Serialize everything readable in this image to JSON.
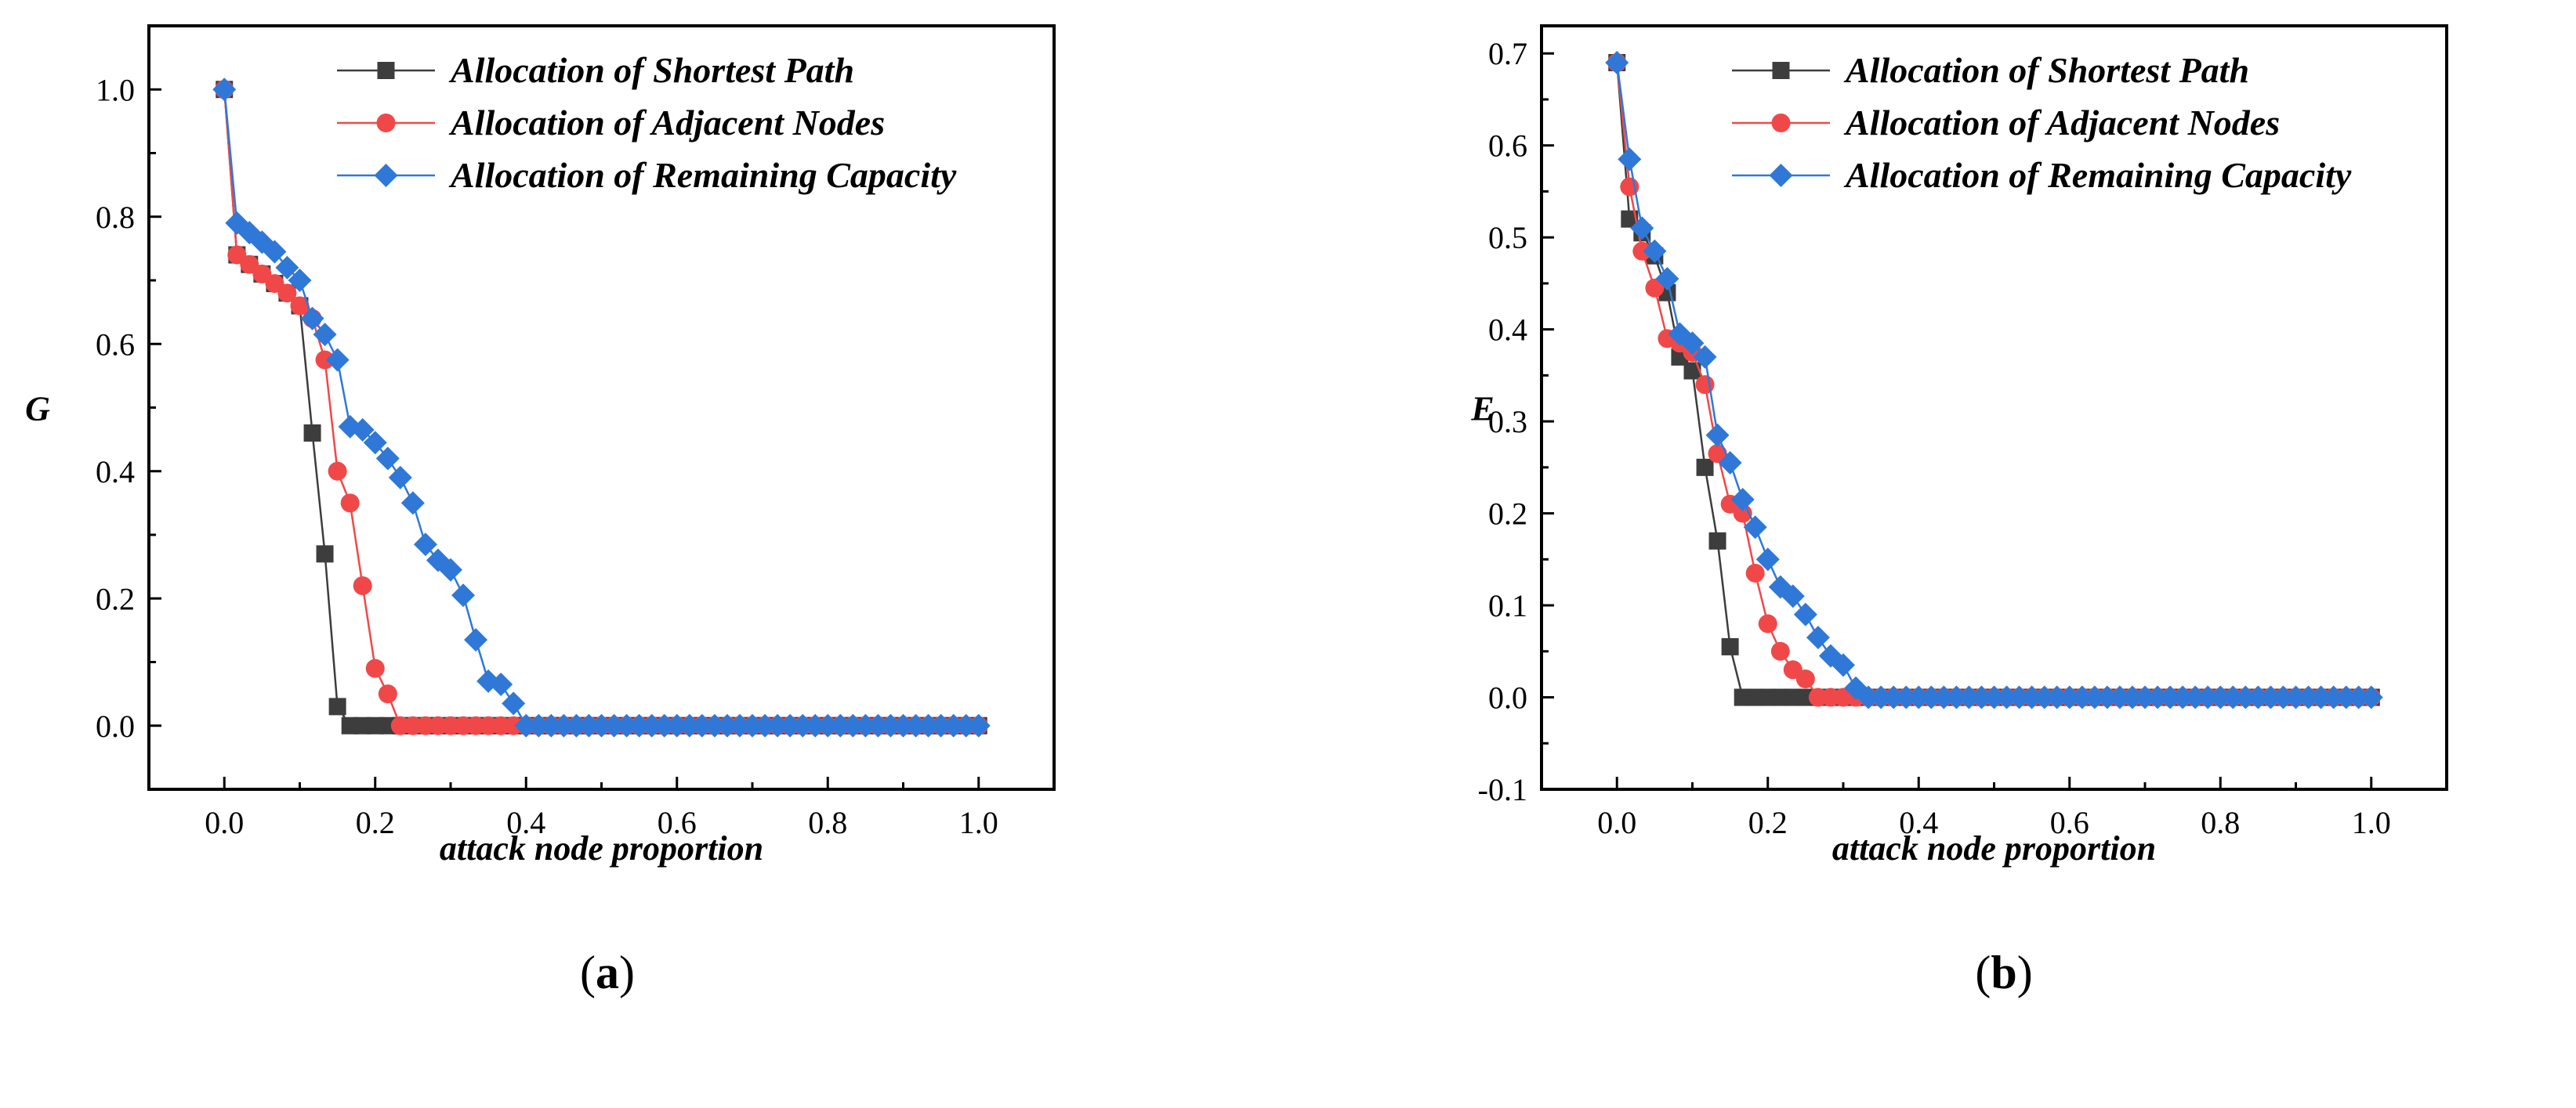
{
  "chart_data": [
    {
      "panel": "a",
      "type": "line",
      "ylabel": "G",
      "xlabel": "attack node proportion",
      "xlim": [
        -0.1,
        1.1
      ],
      "ylim": [
        -0.1,
        1.1
      ],
      "xticks": [
        "0.0",
        "0.2",
        "0.4",
        "0.6",
        "0.8",
        "1.0"
      ],
      "xtick_values": [
        0,
        0.2,
        0.4,
        0.6,
        0.8,
        1.0
      ],
      "yticks": [
        "0.0",
        "0.2",
        "0.4",
        "0.6",
        "0.8",
        "1.0"
      ],
      "ytick_values": [
        0,
        0.2,
        0.4,
        0.6,
        0.8,
        1.0
      ],
      "legend_position": "top-right",
      "series": [
        {
          "name": "Allocation of Shortest Path",
          "marker": "square",
          "color": "#3d3d3d",
          "x": [
            0,
            0.0167,
            0.0333,
            0.05,
            0.0667,
            0.0833,
            0.1,
            0.1167,
            0.1333,
            0.15,
            0.1667,
            0.1833,
            0.2,
            0.2167,
            0.2333,
            0.25,
            0.2667,
            0.2833,
            0.3,
            0.3167,
            0.3333,
            0.35,
            0.3667,
            0.3833,
            0.4,
            0.4167,
            0.4333,
            0.45,
            0.4667,
            0.4833,
            0.5,
            0.5167,
            0.5333,
            0.55,
            0.5667,
            0.5833,
            0.6,
            0.6167,
            0.6333,
            0.65,
            0.6667,
            0.6833,
            0.7,
            0.7167,
            0.7333,
            0.75,
            0.7667,
            0.7833,
            0.8,
            0.8167,
            0.8333,
            0.85,
            0.8667,
            0.8833,
            0.9,
            0.9167,
            0.9333,
            0.95,
            0.9667,
            0.9833,
            1.0
          ],
          "y": [
            1.0,
            0.74,
            0.725,
            0.71,
            0.695,
            0.68,
            0.66,
            0.46,
            0.27,
            0.03,
            0,
            0,
            0,
            0,
            0,
            0,
            0,
            0,
            0,
            0,
            0,
            0,
            0,
            0,
            0,
            0,
            0,
            0,
            0,
            0,
            0,
            0,
            0,
            0,
            0,
            0,
            0,
            0,
            0,
            0,
            0,
            0,
            0,
            0,
            0,
            0,
            0,
            0,
            0,
            0,
            0,
            0,
            0,
            0,
            0,
            0,
            0,
            0,
            0,
            0,
            0
          ]
        },
        {
          "name": "Allocation of Adjacent Nodes",
          "marker": "circle",
          "color": "#f04848",
          "x": [
            0,
            0.0167,
            0.0333,
            0.05,
            0.0667,
            0.0833,
            0.1,
            0.1167,
            0.1333,
            0.15,
            0.1667,
            0.1833,
            0.2,
            0.2167,
            0.2333,
            0.25,
            0.2667,
            0.2833,
            0.3,
            0.3167,
            0.3333,
            0.35,
            0.3667,
            0.3833,
            0.4,
            0.4167,
            0.4333,
            0.45,
            0.4667,
            0.4833,
            0.5,
            0.5167,
            0.5333,
            0.55,
            0.5667,
            0.5833,
            0.6,
            0.6167,
            0.6333,
            0.65,
            0.6667,
            0.6833,
            0.7,
            0.7167,
            0.7333,
            0.75,
            0.7667,
            0.7833,
            0.8,
            0.8167,
            0.8333,
            0.85,
            0.8667,
            0.8833,
            0.9,
            0.9167,
            0.9333,
            0.95,
            0.9667,
            0.9833,
            1.0
          ],
          "y": [
            1.0,
            0.74,
            0.725,
            0.71,
            0.695,
            0.68,
            0.66,
            0.64,
            0.575,
            0.4,
            0.35,
            0.22,
            0.09,
            0.05,
            0,
            0,
            0,
            0,
            0,
            0,
            0,
            0,
            0,
            0,
            0,
            0,
            0,
            0,
            0,
            0,
            0,
            0,
            0,
            0,
            0,
            0,
            0,
            0,
            0,
            0,
            0,
            0,
            0,
            0,
            0,
            0,
            0,
            0,
            0,
            0,
            0,
            0,
            0,
            0,
            0,
            0,
            0,
            0,
            0,
            0,
            0
          ]
        },
        {
          "name": "Allocation of Remaining Capacity",
          "marker": "diamond",
          "color": "#2f78d8",
          "x": [
            0,
            0.0167,
            0.0333,
            0.05,
            0.0667,
            0.0833,
            0.1,
            0.1167,
            0.1333,
            0.15,
            0.1667,
            0.1833,
            0.2,
            0.2167,
            0.2333,
            0.25,
            0.2667,
            0.2833,
            0.3,
            0.3167,
            0.3333,
            0.35,
            0.3667,
            0.3833,
            0.4,
            0.4167,
            0.4333,
            0.45,
            0.4667,
            0.4833,
            0.5,
            0.5167,
            0.5333,
            0.55,
            0.5667,
            0.5833,
            0.6,
            0.6167,
            0.6333,
            0.65,
            0.6667,
            0.6833,
            0.7,
            0.7167,
            0.7333,
            0.75,
            0.7667,
            0.7833,
            0.8,
            0.8167,
            0.8333,
            0.85,
            0.8667,
            0.8833,
            0.9,
            0.9167,
            0.9333,
            0.95,
            0.9667,
            0.9833,
            1.0
          ],
          "y": [
            1.0,
            0.79,
            0.775,
            0.76,
            0.745,
            0.72,
            0.7,
            0.64,
            0.615,
            0.575,
            0.47,
            0.465,
            0.445,
            0.42,
            0.39,
            0.35,
            0.285,
            0.26,
            0.245,
            0.205,
            0.135,
            0.07,
            0.065,
            0.035,
            0,
            0,
            0,
            0,
            0,
            0,
            0,
            0,
            0,
            0,
            0,
            0,
            0,
            0,
            0,
            0,
            0,
            0,
            0,
            0,
            0,
            0,
            0,
            0,
            0,
            0,
            0,
            0,
            0,
            0,
            0,
            0,
            0,
            0,
            0,
            0,
            0
          ]
        }
      ]
    },
    {
      "panel": "b",
      "type": "line",
      "ylabel": "E",
      "xlabel": "attack node proportion",
      "xlim": [
        -0.1,
        1.1
      ],
      "ylim": [
        -0.1,
        0.73
      ],
      "xticks": [
        "0.0",
        "0.2",
        "0.4",
        "0.6",
        "0.8",
        "1.0"
      ],
      "xtick_values": [
        0,
        0.2,
        0.4,
        0.6,
        0.8,
        1.0
      ],
      "yticks": [
        "-0.1",
        "0.0",
        "0.1",
        "0.2",
        "0.3",
        "0.4",
        "0.5",
        "0.6",
        "0.7"
      ],
      "ytick_values": [
        -0.1,
        0,
        0.1,
        0.2,
        0.3,
        0.4,
        0.5,
        0.6,
        0.7
      ],
      "legend_position": "top-right",
      "series": [
        {
          "name": "Allocation of Shortest Path",
          "marker": "square",
          "color": "#3d3d3d",
          "x": [
            0,
            0.0167,
            0.0333,
            0.05,
            0.0667,
            0.0833,
            0.1,
            0.1167,
            0.1333,
            0.15,
            0.1667,
            0.1833,
            0.2,
            0.2167,
            0.2333,
            0.25,
            0.2667,
            0.2833,
            0.3,
            0.3167,
            0.3333,
            0.35,
            0.3667,
            0.3833,
            0.4,
            0.4167,
            0.4333,
            0.45,
            0.4667,
            0.4833,
            0.5,
            0.5167,
            0.5333,
            0.55,
            0.5667,
            0.5833,
            0.6,
            0.6167,
            0.6333,
            0.65,
            0.6667,
            0.6833,
            0.7,
            0.7167,
            0.7333,
            0.75,
            0.7667,
            0.7833,
            0.8,
            0.8167,
            0.8333,
            0.85,
            0.8667,
            0.8833,
            0.9,
            0.9167,
            0.9333,
            0.95,
            0.9667,
            0.9833,
            1.0
          ],
          "y": [
            0.69,
            0.52,
            0.505,
            0.48,
            0.44,
            0.37,
            0.355,
            0.25,
            0.17,
            0.055,
            0,
            0,
            0,
            0,
            0,
            0,
            0,
            0,
            0,
            0,
            0,
            0,
            0,
            0,
            0,
            0,
            0,
            0,
            0,
            0,
            0,
            0,
            0,
            0,
            0,
            0,
            0,
            0,
            0,
            0,
            0,
            0,
            0,
            0,
            0,
            0,
            0,
            0,
            0,
            0,
            0,
            0,
            0,
            0,
            0,
            0,
            0,
            0,
            0,
            0,
            0
          ]
        },
        {
          "name": "Allocation of Adjacent Nodes",
          "marker": "circle",
          "color": "#f04848",
          "x": [
            0,
            0.0167,
            0.0333,
            0.05,
            0.0667,
            0.0833,
            0.1,
            0.1167,
            0.1333,
            0.15,
            0.1667,
            0.1833,
            0.2,
            0.2167,
            0.2333,
            0.25,
            0.2667,
            0.2833,
            0.3,
            0.3167,
            0.3333,
            0.35,
            0.3667,
            0.3833,
            0.4,
            0.4167,
            0.4333,
            0.45,
            0.4667,
            0.4833,
            0.5,
            0.5167,
            0.5333,
            0.55,
            0.5667,
            0.5833,
            0.6,
            0.6167,
            0.6333,
            0.65,
            0.6667,
            0.6833,
            0.7,
            0.7167,
            0.7333,
            0.75,
            0.7667,
            0.7833,
            0.8,
            0.8167,
            0.8333,
            0.85,
            0.8667,
            0.8833,
            0.9,
            0.9167,
            0.9333,
            0.95,
            0.9667,
            0.9833,
            1.0
          ],
          "y": [
            0.69,
            0.555,
            0.485,
            0.445,
            0.39,
            0.385,
            0.375,
            0.34,
            0.265,
            0.21,
            0.2,
            0.135,
            0.08,
            0.05,
            0.03,
            0.02,
            0,
            0,
            0,
            0,
            0,
            0,
            0,
            0,
            0,
            0,
            0,
            0,
            0,
            0,
            0,
            0,
            0,
            0,
            0,
            0,
            0,
            0,
            0,
            0,
            0,
            0,
            0,
            0,
            0,
            0,
            0,
            0,
            0,
            0,
            0,
            0,
            0,
            0,
            0,
            0,
            0,
            0,
            0,
            0,
            0
          ]
        },
        {
          "name": "Allocation of Remaining Capacity",
          "marker": "diamond",
          "color": "#2f78d8",
          "x": [
            0,
            0.0167,
            0.0333,
            0.05,
            0.0667,
            0.0833,
            0.1,
            0.1167,
            0.1333,
            0.15,
            0.1667,
            0.1833,
            0.2,
            0.2167,
            0.2333,
            0.25,
            0.2667,
            0.2833,
            0.3,
            0.3167,
            0.3333,
            0.35,
            0.3667,
            0.3833,
            0.4,
            0.4167,
            0.4333,
            0.45,
            0.4667,
            0.4833,
            0.5,
            0.5167,
            0.5333,
            0.55,
            0.5667,
            0.5833,
            0.6,
            0.6167,
            0.6333,
            0.65,
            0.6667,
            0.6833,
            0.7,
            0.7167,
            0.7333,
            0.75,
            0.7667,
            0.7833,
            0.8,
            0.8167,
            0.8333,
            0.85,
            0.8667,
            0.8833,
            0.9,
            0.9167,
            0.9333,
            0.95,
            0.9667,
            0.9833,
            1.0
          ],
          "y": [
            0.69,
            0.585,
            0.51,
            0.485,
            0.455,
            0.395,
            0.385,
            0.37,
            0.285,
            0.255,
            0.215,
            0.185,
            0.15,
            0.12,
            0.11,
            0.09,
            0.065,
            0.045,
            0.035,
            0.01,
            0,
            0,
            0,
            0,
            0,
            0,
            0,
            0,
            0,
            0,
            0,
            0,
            0,
            0,
            0,
            0,
            0,
            0,
            0,
            0,
            0,
            0,
            0,
            0,
            0,
            0,
            0,
            0,
            0,
            0,
            0,
            0,
            0,
            0,
            0,
            0,
            0,
            0,
            0,
            0,
            0
          ]
        }
      ]
    }
  ],
  "captions": [
    {
      "open": "(",
      "letter": "a",
      "close": ")"
    },
    {
      "open": "(",
      "letter": "b",
      "close": ")"
    }
  ]
}
